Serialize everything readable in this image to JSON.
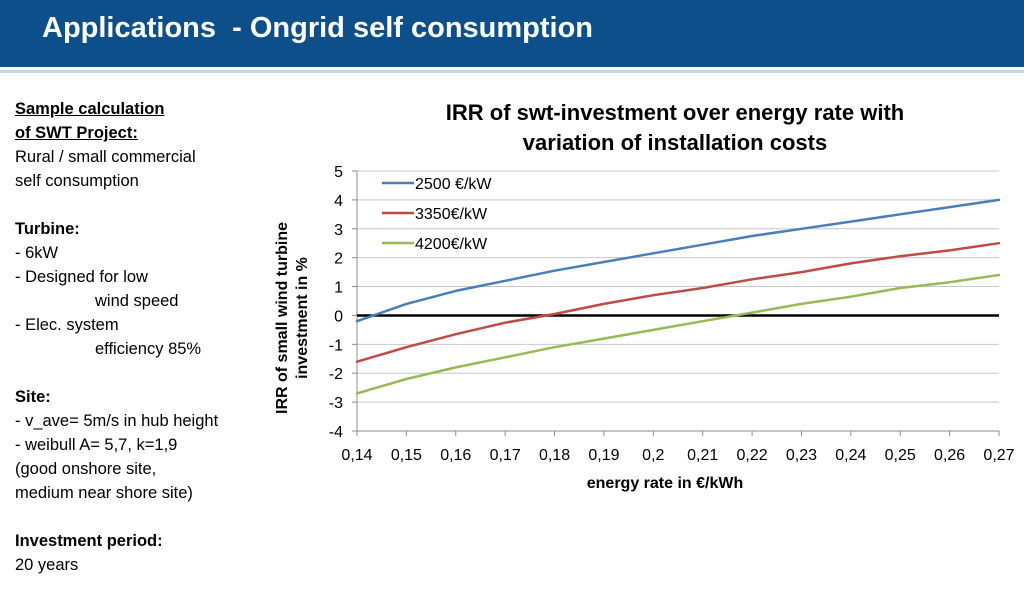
{
  "header": {
    "title": "Applications  - Ongrid self consumption",
    "bg_color": "#0d4f8b"
  },
  "left_panel": {
    "sample_heading_1": "Sample calculation",
    "sample_heading_2": "of SWT Project:",
    "sample_line_1": "Rural / small commercial",
    "sample_line_2": "self consumption",
    "turbine_heading": "Turbine:",
    "turbine_1": "- 6kW",
    "turbine_2a": "- Designed for low",
    "turbine_2b": "wind speed",
    "turbine_3a": "- Elec. system",
    "turbine_3b": "efficiency 85%",
    "site_heading": "Site:",
    "site_1": "- v_ave= 5m/s in hub height",
    "site_2": "- weibull A= 5,7, k=1,9",
    "site_3": "(good onshore site,",
    "site_4": "medium near shore site)",
    "investment_heading": "Investment period:",
    "investment_value": "20 years"
  },
  "chart_data": {
    "type": "line",
    "title_line_1": "IRR of swt-investment over energy rate with",
    "title_line_2": "variation of installation costs",
    "xlabel": "energy rate in €/kWh",
    "ylabel_line_1": "IRR of small wind turbine",
    "ylabel_line_2": "investment in %",
    "x": [
      0.14,
      0.15,
      0.16,
      0.17,
      0.18,
      0.19,
      0.2,
      0.21,
      0.22,
      0.23,
      0.24,
      0.25,
      0.26,
      0.27
    ],
    "x_tick_labels": [
      "0,14",
      "0,15",
      "0,16",
      "0,17",
      "0,18",
      "0,19",
      "0,2",
      "0,21",
      "0,22",
      "0,23",
      "0,24",
      "0,25",
      "0,26",
      "0,27"
    ],
    "y_ticks": [
      5,
      4,
      3,
      2,
      1,
      0,
      -1,
      -2,
      -3,
      -4
    ],
    "y_tick_labels": [
      "5",
      "4",
      "3",
      "2",
      "1",
      "0",
      "-1",
      "-2",
      "-3",
      "-4"
    ],
    "xlim": [
      0.14,
      0.27
    ],
    "ylim": [
      -4,
      5
    ],
    "grid": "horizontal",
    "legend_position": "top-left",
    "series": [
      {
        "name": "2500 €/kW",
        "color": "#4a7ebb",
        "values": [
          -0.2,
          0.4,
          0.85,
          1.2,
          1.55,
          1.85,
          2.15,
          2.45,
          2.75,
          3.0,
          3.25,
          3.5,
          3.75,
          4.0
        ]
      },
      {
        "name": "3350€/kW",
        "color": "#be4b48",
        "values": [
          -1.6,
          -1.1,
          -0.65,
          -0.25,
          0.05,
          0.4,
          0.7,
          0.95,
          1.25,
          1.5,
          1.8,
          2.05,
          2.25,
          2.5
        ]
      },
      {
        "name": "4200€/kW",
        "color": "#98b954",
        "values": [
          -2.7,
          -2.2,
          -1.8,
          -1.45,
          -1.1,
          -0.8,
          -0.5,
          -0.2,
          0.1,
          0.4,
          0.65,
          0.95,
          1.15,
          1.4
        ]
      }
    ]
  }
}
